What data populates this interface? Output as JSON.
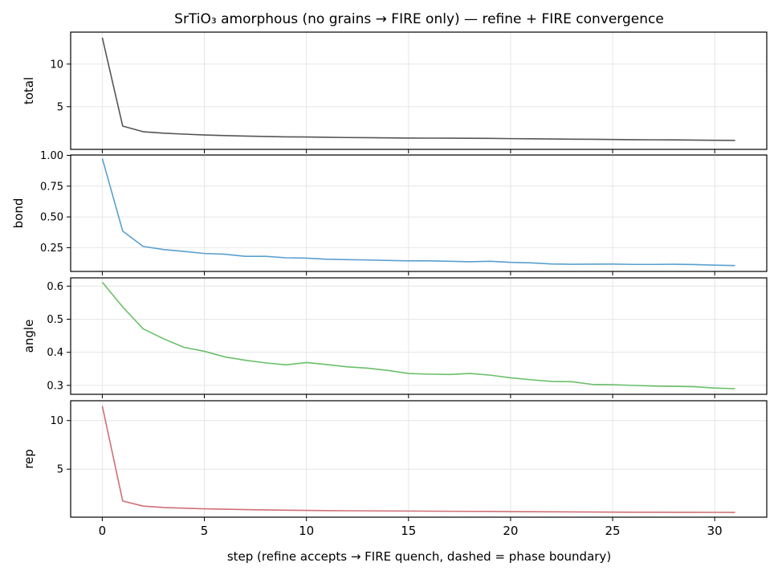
{
  "chart_data": {
    "type": "line",
    "title": "SrTiO₃ amorphous (no grains → FIRE only) — refine + FIRE convergence",
    "xlabel": "step  (refine accepts → FIRE quench, dashed = phase boundary)",
    "x": [
      0,
      1,
      2,
      3,
      4,
      5,
      6,
      7,
      8,
      9,
      10,
      11,
      12,
      13,
      14,
      15,
      16,
      17,
      18,
      19,
      20,
      21,
      22,
      23,
      24,
      25,
      26,
      27,
      28,
      29,
      30,
      31
    ],
    "xlim": [
      -1.55,
      32.55
    ],
    "xticks": [
      0,
      5,
      10,
      15,
      20,
      25,
      30
    ],
    "grid": true,
    "panels": [
      {
        "name": "total",
        "ylabel": "total",
        "color": "#555555",
        "ylim": [
          -0.01,
          13.75
        ],
        "yticks": [
          5,
          10
        ],
        "yticklabels": [
          "5",
          "10"
        ],
        "values": [
          13.1,
          2.72,
          2.06,
          1.89,
          1.78,
          1.68,
          1.61,
          1.55,
          1.5,
          1.46,
          1.44,
          1.41,
          1.38,
          1.36,
          1.34,
          1.32,
          1.31,
          1.3,
          1.29,
          1.28,
          1.25,
          1.23,
          1.21,
          1.19,
          1.17,
          1.15,
          1.13,
          1.11,
          1.1,
          1.08,
          1.06,
          1.04
        ]
      },
      {
        "name": "bond",
        "ylabel": "bond",
        "color": "#5a9fcf",
        "ylim": [
          0.057,
          1.003
        ],
        "yticks": [
          0.25,
          0.5,
          0.75,
          1.0
        ],
        "yticklabels": [
          "0.25",
          "0.50",
          "0.75",
          "1.00"
        ],
        "values": [
          0.975,
          0.385,
          0.26,
          0.235,
          0.22,
          0.203,
          0.197,
          0.18,
          0.18,
          0.168,
          0.165,
          0.156,
          0.153,
          0.15,
          0.146,
          0.143,
          0.143,
          0.14,
          0.136,
          0.14,
          0.131,
          0.127,
          0.118,
          0.115,
          0.116,
          0.117,
          0.114,
          0.114,
          0.115,
          0.113,
          0.108,
          0.105
        ]
      },
      {
        "name": "angle",
        "ylabel": "angle",
        "color": "#6abf69",
        "ylim": [
          0.273,
          0.625
        ],
        "yticks": [
          0.3,
          0.4,
          0.5,
          0.6
        ],
        "yticklabels": [
          "0.3",
          "0.4",
          "0.5",
          "0.6"
        ],
        "values": [
          0.612,
          0.537,
          0.471,
          0.441,
          0.415,
          0.403,
          0.386,
          0.376,
          0.368,
          0.362,
          0.369,
          0.363,
          0.356,
          0.352,
          0.345,
          0.336,
          0.334,
          0.333,
          0.336,
          0.331,
          0.323,
          0.317,
          0.312,
          0.311,
          0.303,
          0.302,
          0.3,
          0.298,
          0.297,
          0.296,
          0.292,
          0.29
        ]
      },
      {
        "name": "rep",
        "ylabel": "rep",
        "color": "#d07077",
        "ylim": [
          0.06,
          12.04
        ],
        "yticks": [
          5,
          10
        ],
        "yticklabels": [
          "5",
          "10"
        ],
        "values": [
          11.5,
          1.72,
          1.2,
          1.06,
          0.98,
          0.92,
          0.88,
          0.84,
          0.81,
          0.78,
          0.76,
          0.74,
          0.72,
          0.71,
          0.7,
          0.69,
          0.68,
          0.67,
          0.66,
          0.65,
          0.63,
          0.62,
          0.61,
          0.6,
          0.59,
          0.58,
          0.575,
          0.57,
          0.565,
          0.56,
          0.555,
          0.55
        ]
      }
    ]
  }
}
